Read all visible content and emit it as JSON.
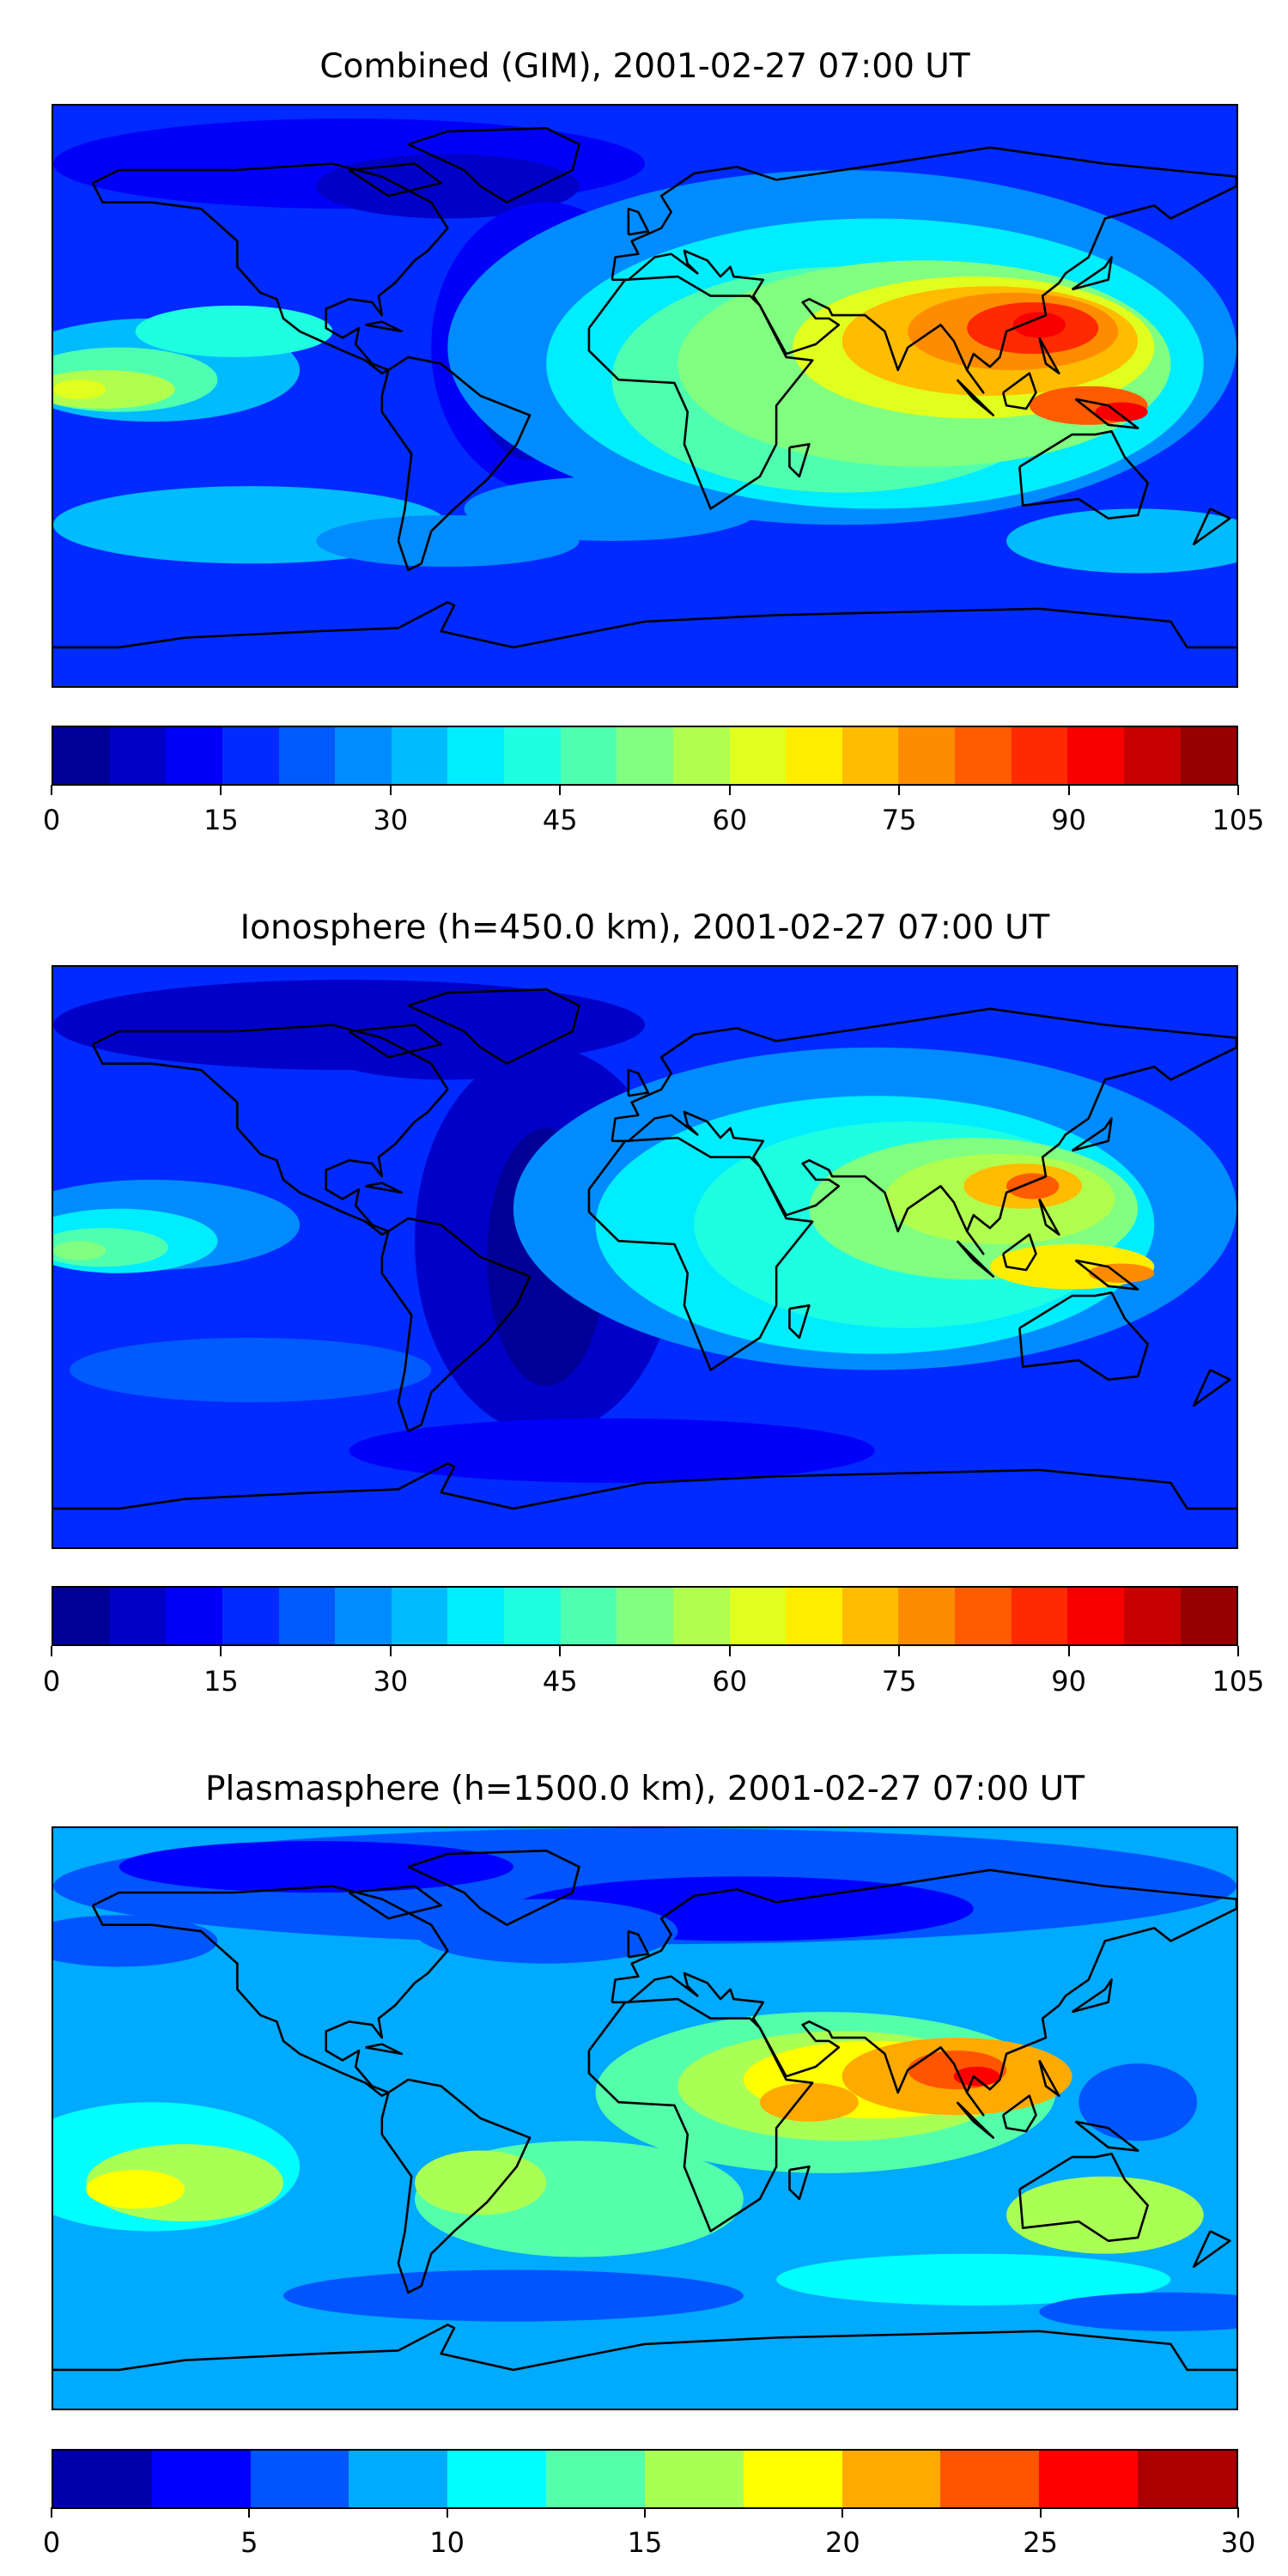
{
  "chart_data": [
    {
      "type": "heatmap",
      "title": "Combined (GIM), 2001-02-27 07:00 UT",
      "projection": "equirectangular, global",
      "colorbar": {
        "min": 0,
        "max": 105,
        "step": 5,
        "ticks": [
          0,
          15,
          30,
          45,
          60,
          75,
          90,
          105
        ],
        "colormap": "jet"
      },
      "features": {
        "maximum": "≈90 over SE Asia / Indonesia",
        "secondary": "≈65 equatorial central Pacific",
        "minimum": "≈5–10 over N. Atlantic / polar regions"
      }
    },
    {
      "type": "heatmap",
      "title": "Ionosphere  (h=450.0 km), 2001-02-27 07:00 UT",
      "projection": "equirectangular, global",
      "colorbar": {
        "min": 0,
        "max": 105,
        "step": 5,
        "ticks": [
          0,
          15,
          30,
          45,
          60,
          75,
          90,
          105
        ],
        "colormap": "jet"
      },
      "features": {
        "maximum": "≈80 over S. China / Indonesia",
        "secondary": "≈50 equatorial central Pacific",
        "minimum": "≈0–5 over Atlantic / Americas"
      }
    },
    {
      "type": "heatmap",
      "title": "Plasmasphere (h=1500.0 km), 2001-02-27 07:00 UT",
      "projection": "equirectangular, global",
      "colorbar": {
        "min": 0,
        "max": 30,
        "step": 2.5,
        "ticks": [
          0,
          5,
          10,
          15,
          20,
          25,
          30
        ],
        "colormap": "jet"
      },
      "features": {
        "maximum": "≈25 over Indochina / Indian Ocean",
        "secondary": "≈17–20 S. Pacific",
        "minimum": "≈0–5 northern high latitudes"
      }
    }
  ]
}
